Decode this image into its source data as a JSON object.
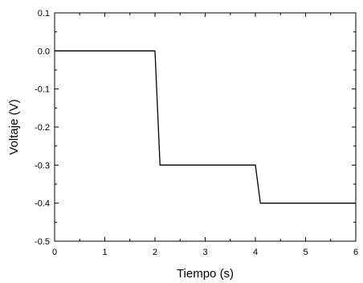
{
  "chart_data": {
    "type": "line",
    "title": "",
    "xlabel": "Tiempo (s)",
    "ylabel": "Voltaje (V)",
    "xlim": [
      0,
      6
    ],
    "ylim": [
      -0.5,
      0.1
    ],
    "xticks": [
      0,
      1,
      2,
      3,
      4,
      5,
      6
    ],
    "xtick_labels": [
      "0",
      "1",
      "2",
      "3",
      "4",
      "5",
      "6"
    ],
    "yticks": [
      0.1,
      0.0,
      -0.1,
      -0.2,
      -0.3,
      -0.4,
      -0.5
    ],
    "ytick_labels": [
      "0.1",
      "0.0",
      "-0.1",
      "-0.2",
      "-0.3",
      "-0.4",
      "-0.5"
    ],
    "grid": false,
    "legend": "none",
    "series": [
      {
        "color": "#000000",
        "x": [
          0,
          2.0,
          2.1,
          4.0,
          4.1,
          6.0
        ],
        "y": [
          0.0,
          0.0,
          -0.3,
          -0.3,
          -0.4,
          -0.4
        ]
      }
    ]
  }
}
